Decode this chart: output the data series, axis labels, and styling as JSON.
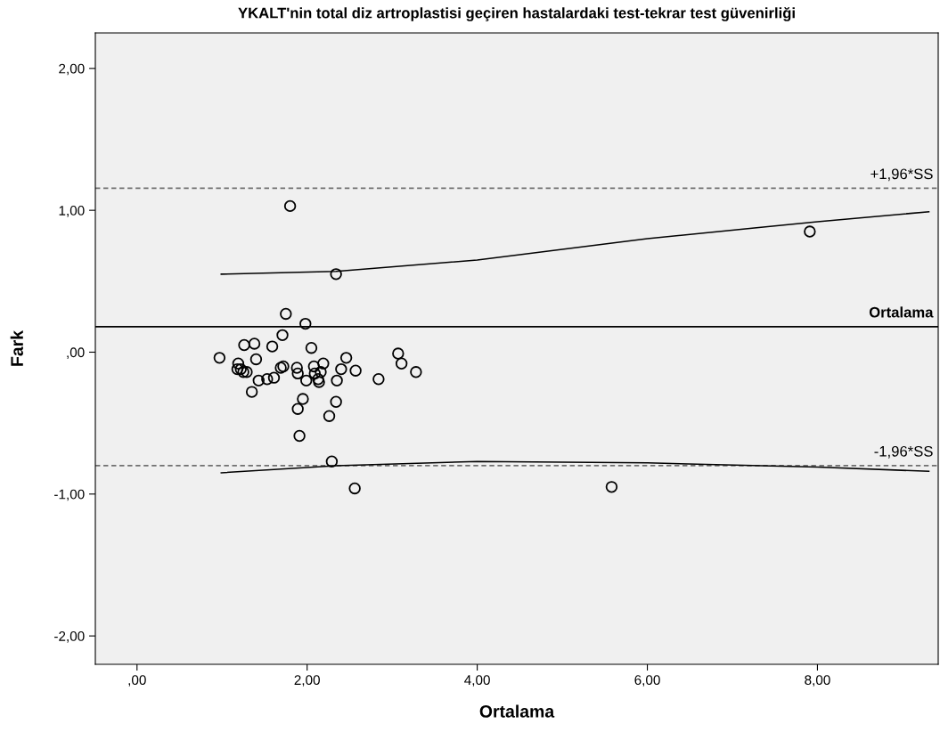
{
  "chart_data": {
    "type": "scatter",
    "title": "YKALT'nin total diz artroplastisi geçiren hastalardaki test-tekrar test güvenirliği",
    "xlabel": "Ortalama",
    "ylabel": "Fark",
    "xlim": [
      -0.49,
      9.42
    ],
    "ylim": [
      -2.2,
      2.25
    ],
    "xticks": [
      {
        "value": 0,
        "label": ",00"
      },
      {
        "value": 2,
        "label": "2,00"
      },
      {
        "value": 4,
        "label": "4,00"
      },
      {
        "value": 6,
        "label": "6,00"
      },
      {
        "value": 8,
        "label": "8,00"
      }
    ],
    "yticks": [
      {
        "value": -2,
        "label": "-2,00"
      },
      {
        "value": -1,
        "label": "-1,00"
      },
      {
        "value": 0,
        "label": ",00"
      },
      {
        "value": 1,
        "label": "1,00"
      },
      {
        "value": 2,
        "label": "2,00"
      }
    ],
    "grid": false,
    "series": [
      {
        "color": "#000000",
        "marker": "circle",
        "x": [
          1.8,
          2.34,
          7.91,
          5.58,
          2.56,
          1.75,
          1.98,
          1.71,
          1.26,
          1.38,
          1.59,
          2.05,
          0.97,
          1.4,
          1.19,
          1.22,
          1.25,
          1.29,
          1.18,
          1.43,
          1.53,
          1.61,
          1.69,
          1.72,
          1.35,
          1.88,
          1.89,
          1.99,
          2.08,
          2.09,
          2.13,
          2.14,
          2.16,
          2.19,
          2.46,
          2.4,
          2.57,
          2.35,
          2.84,
          3.07,
          3.11,
          3.28,
          1.95,
          1.89,
          2.34,
          2.26,
          1.91,
          2.29
        ],
        "values": [
          1.03,
          0.55,
          0.85,
          -0.95,
          -0.96,
          0.27,
          0.2,
          0.12,
          0.05,
          0.06,
          0.04,
          0.03,
          -0.04,
          -0.05,
          -0.08,
          -0.12,
          -0.14,
          -0.14,
          -0.12,
          -0.2,
          -0.19,
          -0.18,
          -0.11,
          -0.1,
          -0.28,
          -0.11,
          -0.15,
          -0.2,
          -0.1,
          -0.15,
          -0.19,
          -0.21,
          -0.14,
          -0.08,
          -0.04,
          -0.12,
          -0.13,
          -0.2,
          -0.19,
          -0.01,
          -0.08,
          -0.14,
          -0.33,
          -0.4,
          -0.35,
          -0.45,
          -0.59,
          -0.77
        ]
      },
      {
        "type": "line",
        "color": "#000000",
        "x": [
          0.99,
          2.34,
          4,
          6,
          8,
          9.31
        ],
        "values": [
          0.55,
          0.57,
          0.65,
          0.8,
          0.92,
          0.99
        ]
      },
      {
        "type": "line",
        "color": "#000000",
        "x": [
          0.99,
          2.34,
          4,
          6,
          8,
          9.31
        ],
        "values": [
          -0.85,
          -0.8,
          -0.77,
          -0.78,
          -0.81,
          -0.84
        ]
      }
    ],
    "ref_lines": [
      {
        "axis": "y",
        "value": 1.155,
        "label": "+1,96*SS",
        "color": "#707070",
        "line_style": "dashed"
      },
      {
        "axis": "y",
        "value": 0.18,
        "label": "Ortalama",
        "color": "#000000",
        "line_style": "solid"
      },
      {
        "axis": "y",
        "value": -0.8,
        "label": "-1,96*SS",
        "color": "#707070",
        "line_style": "dashed"
      }
    ]
  }
}
